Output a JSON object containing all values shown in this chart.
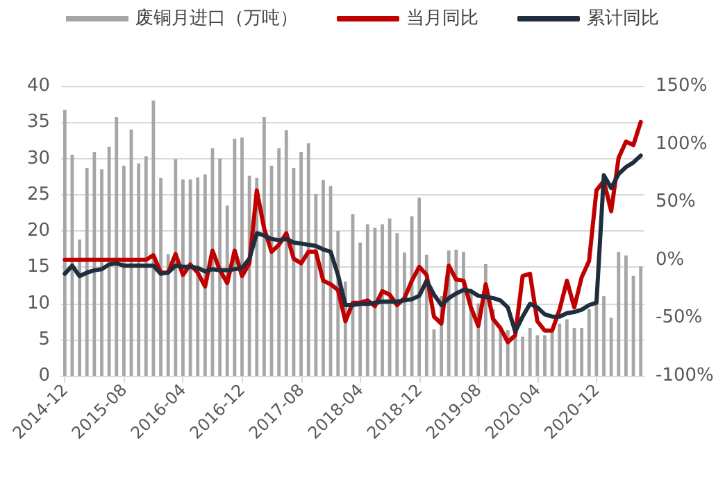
{
  "chart_data": {
    "type": "bar",
    "categories": [
      "2014-12",
      null,
      null,
      null,
      null,
      null,
      null,
      null,
      "2015-08",
      null,
      null,
      null,
      null,
      null,
      null,
      null,
      "2016-04",
      null,
      null,
      null,
      null,
      null,
      null,
      null,
      "2016-12",
      null,
      null,
      null,
      null,
      null,
      null,
      null,
      "2017-08",
      null,
      null,
      null,
      null,
      null,
      null,
      null,
      "2018-04",
      null,
      null,
      null,
      null,
      null,
      null,
      null,
      "2018-12",
      null,
      null,
      null,
      null,
      null,
      null,
      null,
      "2019-08",
      null,
      null,
      null,
      null,
      null,
      null,
      null,
      "2020-04",
      null,
      null,
      null,
      null,
      null,
      null,
      null,
      "2020-12",
      null,
      null,
      null,
      null,
      null,
      null
    ],
    "series": [
      {
        "name": "废铜月进口（万吨）",
        "color": "#a6a6a6",
        "values": [
          36.7,
          30.5,
          18.8,
          28.7,
          30.9,
          28.5,
          31.6,
          35.7,
          29.0,
          34.0,
          29.3,
          30.3,
          38.0,
          27.3,
          16.8,
          29.9,
          27.1,
          27.1,
          27.4,
          27.8,
          31.4,
          30.0,
          23.5,
          32.7,
          32.9,
          27.6,
          27.3,
          35.7,
          29.0,
          31.4,
          33.9,
          28.7,
          30.9,
          32.1,
          25.1,
          27.0,
          26.2,
          20.0,
          13.0,
          22.3,
          18.4,
          20.9,
          20.4,
          20.9,
          21.7,
          19.7,
          17.0,
          22.0,
          24.6,
          16.7,
          6.4,
          11,
          17.3,
          17.4,
          17.1,
          12,
          10,
          15.4,
          9.2,
          6.9,
          6.3,
          5.6,
          5.4,
          6.6,
          5.6,
          5.6,
          6.3,
          7.2,
          7.8,
          6.6,
          6.6,
          9.2,
          10.7,
          11.0,
          8.0,
          17.1,
          16.6,
          13.8,
          15.1
        ]
      },
      {
        "name": "当月同比",
        "type": "line",
        "axis": "y2",
        "color": "#c00000",
        "values": [
          0,
          0,
          0,
          0,
          0,
          0,
          0,
          0,
          0,
          0,
          0,
          0,
          4,
          -11,
          -11,
          5,
          -13,
          -4,
          -11,
          -23,
          8,
          -9,
          -20,
          8,
          -14,
          -3,
          60,
          27,
          7,
          13,
          23,
          1,
          -3,
          7,
          7,
          -18,
          -21,
          -26,
          -53,
          -37,
          -37,
          -35,
          -40,
          -27,
          -30,
          -39,
          -33,
          -18,
          -6,
          -13,
          -49,
          -55,
          -5,
          -17,
          -18,
          -41,
          -57,
          -21,
          -51,
          -59,
          -71,
          -65,
          -14,
          -12,
          -53,
          -61,
          -61,
          -43,
          -18,
          -41,
          -15,
          -1,
          60,
          68,
          42,
          88,
          102,
          99,
          119
        ]
      },
      {
        "name": "累计同比",
        "type": "line",
        "axis": "y2",
        "color": "#1f2d3d",
        "values": [
          -12,
          -5,
          -14,
          -11,
          -9,
          -8,
          -4,
          -3,
          -5,
          -5,
          -5,
          -5,
          -5,
          -12,
          -11,
          -5,
          -6,
          -6,
          -7,
          -10,
          -8,
          -9,
          -9,
          -8,
          -7,
          1,
          23,
          21,
          18,
          17,
          18,
          15,
          14,
          13,
          12,
          9,
          7,
          -13,
          -39,
          -39,
          -38,
          -38,
          -37,
          -36,
          -36,
          -36,
          -35,
          -34,
          -31,
          -18,
          -30,
          -39,
          -33,
          -29,
          -26,
          -27,
          -31,
          -32,
          -33,
          -35,
          -41,
          -62,
          -49,
          -38,
          -41,
          -47,
          -49,
          -49,
          -46,
          -45,
          -43,
          -39,
          -37,
          73,
          62,
          74,
          80,
          84,
          90
        ]
      }
    ],
    "ylim": [
      0,
      40
    ],
    "yticks": [
      0,
      5,
      10,
      15,
      20,
      25,
      30,
      35,
      40
    ],
    "y2lim": [
      -100,
      150
    ],
    "y2ticks": [
      {
        "value": -100,
        "label": "-100%"
      },
      {
        "value": -50,
        "label": "-50%"
      },
      {
        "value": 0,
        "label": "0%"
      },
      {
        "value": 50,
        "label": "50%"
      },
      {
        "value": 100,
        "label": "100%"
      },
      {
        "value": 150,
        "label": "150%"
      }
    ],
    "grid": "y",
    "legend": "top",
    "marker": "none",
    "line_style": "solid"
  }
}
